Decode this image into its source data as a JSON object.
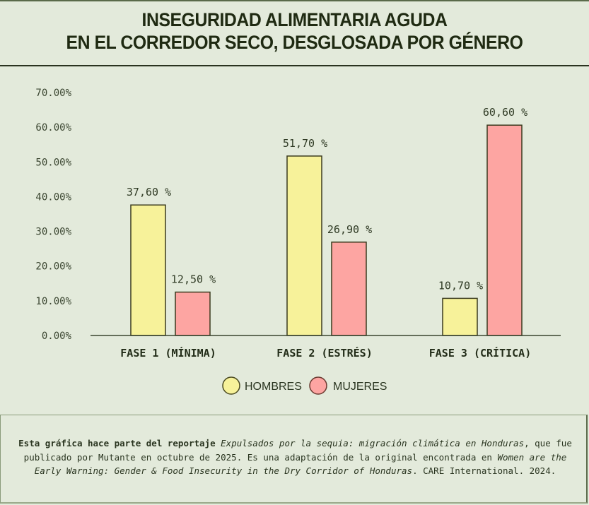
{
  "header": {
    "title_line1": "INSEGURIDAD ALIMENTARIA AGUDA",
    "title_line2": "EN EL CORREDOR SECO, DESGLOSADA POR GÉNERO"
  },
  "colors": {
    "background": "#e3eadb",
    "hombres": "#f7f29a",
    "mujeres": "#fda5a2",
    "outline": "#3a3a1e"
  },
  "chart_data": {
    "type": "bar",
    "title": "INSEGURIDAD ALIMENTARIA AGUDA EN EL CORREDOR SECO, DESGLOSADA POR GÉNERO",
    "xlabel": "",
    "ylabel": "",
    "ylim": [
      0,
      70
    ],
    "yticks": [
      "0.00%",
      "10.00%",
      "20.00%",
      "30.00%",
      "40.00%",
      "50.00%",
      "60.00%",
      "70.00%"
    ],
    "categories": [
      "FASE 1 (MÍNIMA)",
      "FASE 2 (ESTRÉS)",
      "FASE 3 (CRÍTICA)"
    ],
    "series": [
      {
        "name": "HOMBRES",
        "values": [
          37.6,
          51.7,
          10.7
        ],
        "labels": [
          "37,60 %",
          "51,70 %",
          "10,70 %"
        ]
      },
      {
        "name": "MUJERES",
        "values": [
          12.5,
          26.9,
          60.6
        ],
        "labels": [
          "12,50 %",
          "26,90 %",
          "60,60 %"
        ]
      }
    ],
    "grid": false,
    "legend_position": "bottom-center"
  },
  "caption": {
    "bold_intro": "Esta gráfica hace parte del reportaje",
    "italic_title": "Expulsados por la sequia: migración climática en Honduras",
    "text_mid": ", que fue publicado por Mutante en octubre de 2025. Es una adaptación de la original encontrada en",
    "italic_source": "Women are the Early Warning: Gender & Food Insecurity in the Dry Corridor of Honduras",
    "text_end": ". CARE International. 2024."
  }
}
